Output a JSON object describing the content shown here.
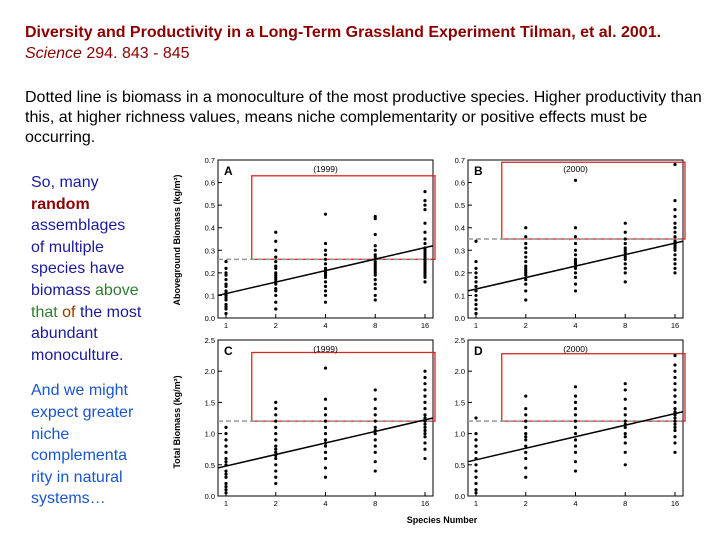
{
  "title": {
    "main": "Diversity and Productivity in a Long-Term Grassland Experiment Tilman, et al. 2001.",
    "journal": "Science",
    "pages": "294. 843 - 845"
  },
  "description": "Dotted line is biomass in a monoculture of the most productive species. Higher productivity than this, at higher richness values, means niche complementarity or positive effects must be occurring.",
  "side_text": {
    "p1_a": "So, many",
    "p1_b": "random",
    "p1_c": "assemblages of multiple species have biomass",
    "p1_d": "above that",
    "p1_e": "of",
    "p1_f": "the most abundant monoculture.",
    "p2": "And we might expect greater niche complementa rity in natural systems…"
  },
  "colors": {
    "title": "#8b0000",
    "side_text": "#1a1a99",
    "highlight_box": "#d62828",
    "monoculture_line": "#999999",
    "points": "#000000"
  },
  "shared_axes": {
    "xlabel": "Species Number",
    "x_ticks": [
      "1",
      "2",
      "4",
      "8",
      "16"
    ]
  },
  "chart_data": [
    {
      "type": "scatter",
      "panel": "A",
      "year": "(1999)",
      "ylabel": "Aboveground Biomass (kg/m²)",
      "ylim": [
        0.0,
        0.7
      ],
      "yticks": [
        "0.0",
        "0.1",
        "0.2",
        "0.3",
        "0.4",
        "0.5",
        "0.6",
        "0.7"
      ],
      "points": {
        "1": [
          0.02,
          0.04,
          0.05,
          0.06,
          0.08,
          0.09,
          0.1,
          0.11,
          0.12,
          0.14,
          0.15,
          0.17,
          0.19,
          0.2,
          0.22,
          0.25
        ],
        "2": [
          0.04,
          0.07,
          0.1,
          0.12,
          0.13,
          0.15,
          0.16,
          0.17,
          0.18,
          0.19,
          0.2,
          0.22,
          0.23,
          0.25,
          0.27,
          0.3,
          0.34,
          0.38
        ],
        "4": [
          0.07,
          0.1,
          0.12,
          0.14,
          0.16,
          0.18,
          0.19,
          0.2,
          0.21,
          0.22,
          0.24,
          0.26,
          0.28,
          0.3,
          0.33,
          0.46
        ],
        "8": [
          0.08,
          0.1,
          0.13,
          0.15,
          0.17,
          0.19,
          0.2,
          0.21,
          0.22,
          0.23,
          0.24,
          0.25,
          0.27,
          0.28,
          0.3,
          0.32,
          0.37,
          0.44,
          0.45
        ],
        "16": [
          0.16,
          0.18,
          0.19,
          0.2,
          0.21,
          0.22,
          0.23,
          0.24,
          0.25,
          0.26,
          0.27,
          0.28,
          0.29,
          0.3,
          0.31,
          0.33,
          0.35,
          0.38,
          0.42,
          0.48,
          0.5,
          0.52,
          0.56
        ]
      },
      "regression": [
        0.1,
        0.32
      ],
      "monoculture_level": 0.26,
      "highlight": {
        "x_from": "2",
        "x_to": "16",
        "y_from": 0.26,
        "y_to": 0.63
      }
    },
    {
      "type": "scatter",
      "panel": "B",
      "year": "(2000)",
      "ylabel": "",
      "ylim": [
        0.0,
        0.7
      ],
      "yticks": [
        "0.0",
        "0.1",
        "0.2",
        "0.3",
        "0.4",
        "0.5",
        "0.6",
        "0.7"
      ],
      "points": {
        "1": [
          0.02,
          0.04,
          0.06,
          0.08,
          0.1,
          0.12,
          0.14,
          0.16,
          0.18,
          0.2,
          0.22,
          0.25,
          0.34
        ],
        "2": [
          0.08,
          0.12,
          0.15,
          0.17,
          0.19,
          0.2,
          0.21,
          0.22,
          0.23,
          0.25,
          0.27,
          0.29,
          0.31,
          0.33,
          0.36,
          0.4
        ],
        "4": [
          0.12,
          0.15,
          0.18,
          0.2,
          0.22,
          0.23,
          0.24,
          0.25,
          0.26,
          0.28,
          0.3,
          0.33,
          0.36,
          0.4,
          0.61
        ],
        "8": [
          0.16,
          0.2,
          0.22,
          0.24,
          0.26,
          0.27,
          0.28,
          0.29,
          0.3,
          0.31,
          0.33,
          0.35,
          0.38,
          0.42
        ],
        "16": [
          0.2,
          0.22,
          0.24,
          0.26,
          0.28,
          0.3,
          0.31,
          0.32,
          0.33,
          0.34,
          0.36,
          0.38,
          0.4,
          0.42,
          0.45,
          0.48,
          0.52,
          0.68
        ]
      },
      "regression": [
        0.12,
        0.34
      ],
      "monoculture_level": 0.35,
      "highlight": {
        "x_from": "2",
        "x_to": "16",
        "y_from": 0.35,
        "y_to": 0.69
      }
    },
    {
      "type": "scatter",
      "panel": "C",
      "year": "(1999)",
      "ylabel": "Total Biomass (kg/m²)",
      "ylim": [
        0.0,
        2.5
      ],
      "yticks": [
        "0.0",
        "0.5",
        "1.0",
        "1.5",
        "2.0",
        "2.5"
      ],
      "points": {
        "1": [
          0.05,
          0.1,
          0.15,
          0.2,
          0.3,
          0.35,
          0.4,
          0.5,
          0.55,
          0.6,
          0.7,
          0.8,
          0.9,
          1.0,
          1.1
        ],
        "2": [
          0.2,
          0.3,
          0.4,
          0.5,
          0.6,
          0.65,
          0.7,
          0.75,
          0.8,
          0.9,
          1.0,
          1.1,
          1.2,
          1.3,
          1.4,
          1.5
        ],
        "4": [
          0.3,
          0.45,
          0.6,
          0.7,
          0.8,
          0.85,
          0.9,
          1.0,
          1.1,
          1.2,
          1.3,
          1.4,
          1.55,
          2.05
        ],
        "8": [
          0.4,
          0.55,
          0.7,
          0.8,
          0.9,
          1.0,
          1.05,
          1.1,
          1.2,
          1.3,
          1.4,
          1.55,
          1.7
        ],
        "16": [
          0.6,
          0.75,
          0.85,
          0.95,
          1.0,
          1.05,
          1.1,
          1.15,
          1.2,
          1.25,
          1.3,
          1.4,
          1.5,
          1.6,
          1.7,
          1.8,
          1.9,
          2.0
        ]
      },
      "regression": [
        0.45,
        1.25
      ],
      "monoculture_level": 1.2,
      "highlight": {
        "x_from": "2",
        "x_to": "16",
        "y_from": 1.2,
        "y_to": 2.3
      }
    },
    {
      "type": "scatter",
      "panel": "D",
      "year": "(2000)",
      "ylabel": "",
      "ylim": [
        0.0,
        2.5
      ],
      "yticks": [
        "0.0",
        "0.5",
        "1.0",
        "1.5",
        "2.0",
        "2.5"
      ],
      "points": {
        "1": [
          0.05,
          0.1,
          0.2,
          0.3,
          0.4,
          0.5,
          0.6,
          0.7,
          0.8,
          0.9,
          1.0,
          1.25
        ],
        "2": [
          0.3,
          0.45,
          0.6,
          0.7,
          0.8,
          0.9,
          0.95,
          1.0,
          1.1,
          1.2,
          1.3,
          1.4,
          1.6
        ],
        "4": [
          0.4,
          0.55,
          0.7,
          0.8,
          0.9,
          1.0,
          1.1,
          1.2,
          1.3,
          1.4,
          1.5,
          1.6,
          1.75
        ],
        "8": [
          0.5,
          0.7,
          0.85,
          0.95,
          1.0,
          1.1,
          1.15,
          1.2,
          1.3,
          1.4,
          1.55,
          1.7,
          1.8
        ],
        "16": [
          0.7,
          0.85,
          0.95,
          1.05,
          1.1,
          1.15,
          1.2,
          1.25,
          1.3,
          1.35,
          1.4,
          1.5,
          1.6,
          1.7,
          1.8,
          1.9,
          2.0,
          2.1,
          2.25
        ]
      },
      "regression": [
        0.55,
        1.35
      ],
      "monoculture_level": 1.2,
      "highlight": {
        "x_from": "2",
        "x_to": "16",
        "y_from": 1.2,
        "y_to": 2.28
      }
    }
  ]
}
